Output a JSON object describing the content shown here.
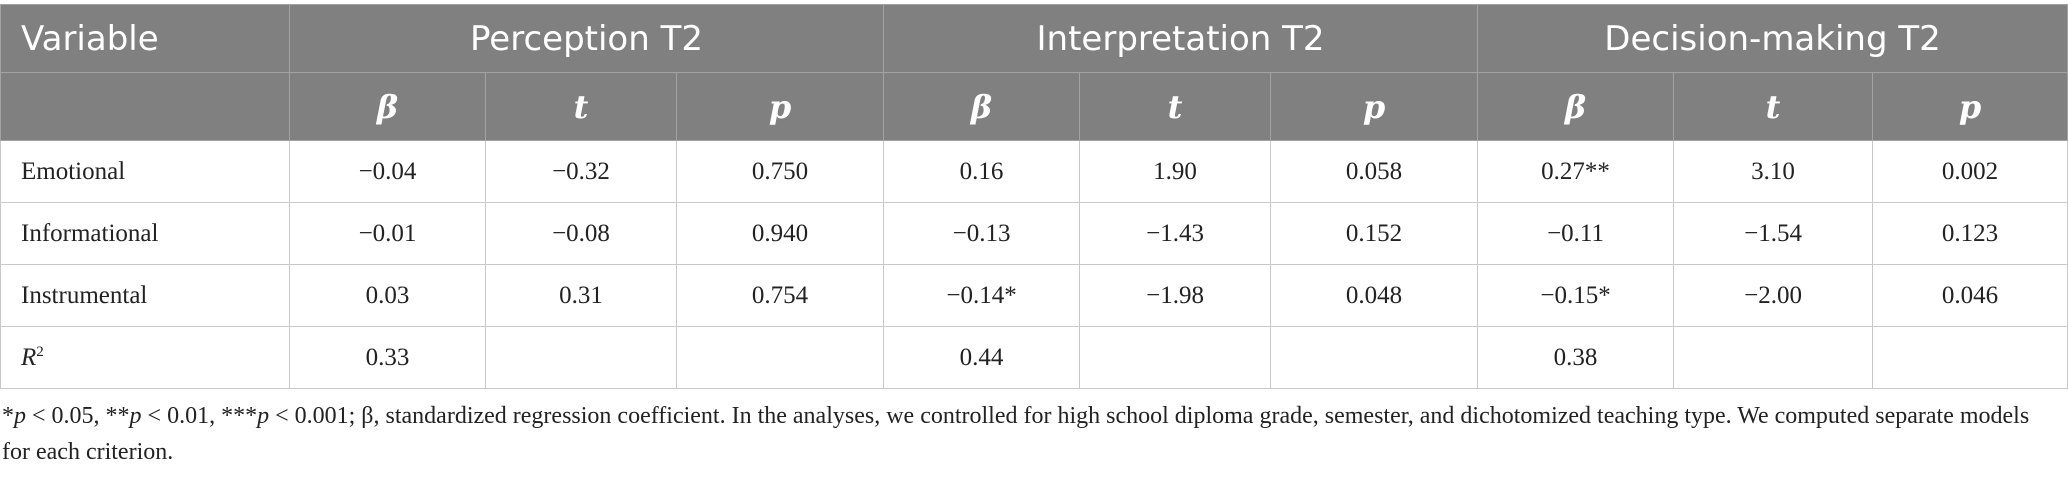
{
  "header": {
    "variable": "Variable",
    "groups": [
      "Perception T2",
      "Interpretation T2",
      "Decision-making T2"
    ],
    "stats": [
      "β",
      "t",
      "p"
    ]
  },
  "rows": [
    {
      "label": "Emotional",
      "values": [
        "−0.04",
        "−0.32",
        "0.750",
        "0.16",
        "1.90",
        "0.058",
        "0.27**",
        "3.10",
        "0.002"
      ]
    },
    {
      "label": "Informational",
      "values": [
        "−0.01",
        "−0.08",
        "0.940",
        "−0.13",
        "−1.43",
        "0.152",
        "−0.11",
        "−1.54",
        "0.123"
      ]
    },
    {
      "label": "Instrumental",
      "values": [
        "0.03",
        "0.31",
        "0.754",
        "−0.14*",
        "−1.98",
        "0.048",
        "−0.15*",
        "−2.00",
        "0.046"
      ]
    }
  ],
  "r2_row": {
    "label_base": "R",
    "label_sup": "2",
    "values": [
      "0.33",
      "",
      "",
      "0.44",
      "",
      "",
      "0.38",
      "",
      ""
    ]
  },
  "note": {
    "p1": "p",
    "t1": " < 0.05, **",
    "p2": "p",
    "t2": " < 0.01, ***",
    "p3": "p",
    "t3": " < 0.001; β, standardized regression coefficient. In the analyses, we controlled for high school diploma grade, semester, and dichotomized teaching type. We computed separate models for each criterion.",
    "lead": "*"
  }
}
